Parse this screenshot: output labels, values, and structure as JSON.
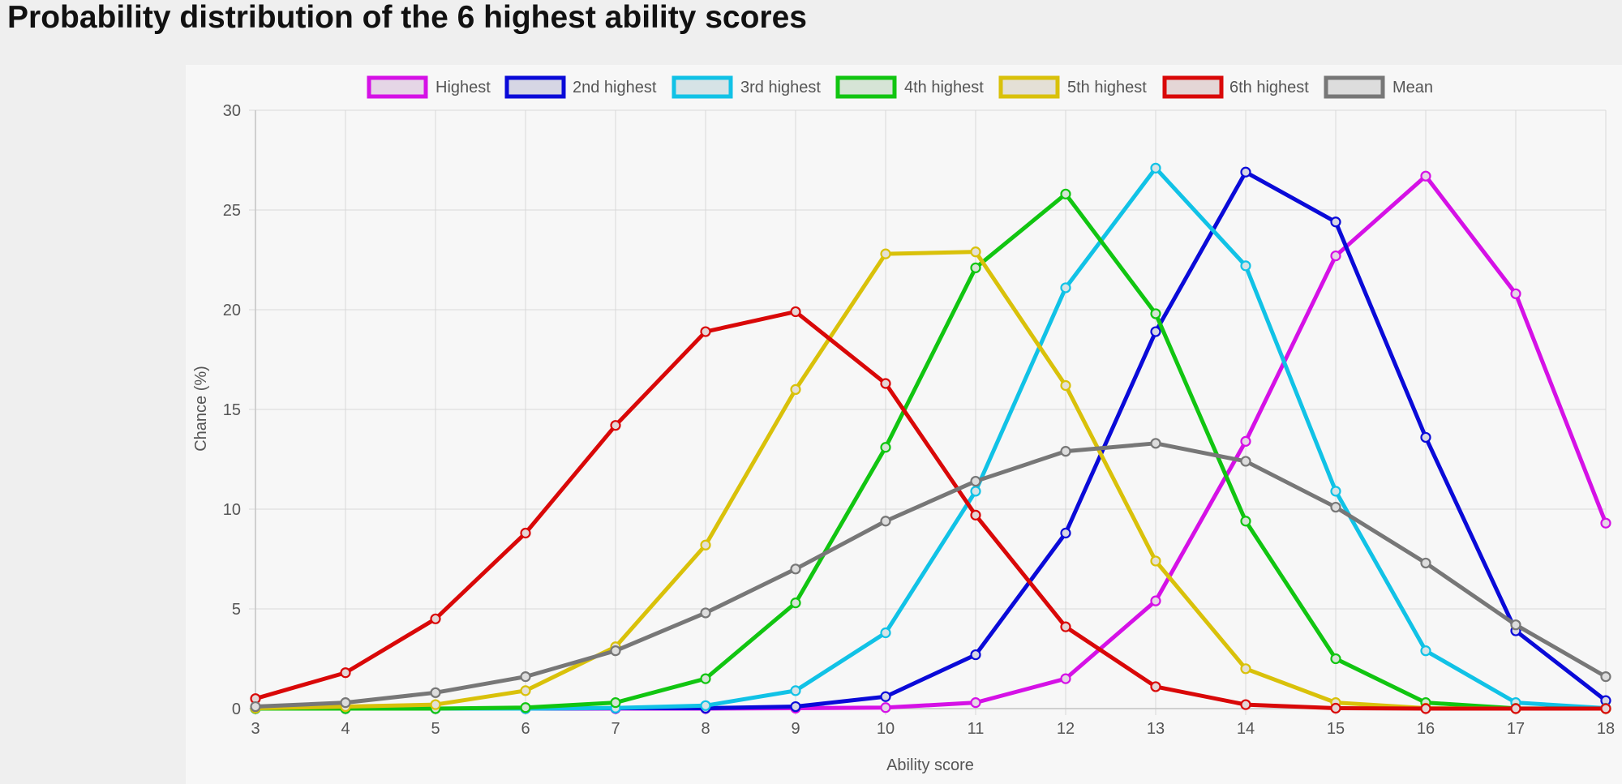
{
  "page": {
    "title": "Probability distribution of the 6 highest ability scores"
  },
  "chart_data": {
    "type": "line",
    "title": "",
    "xlabel": "Ability score",
    "ylabel": "Chance (%)",
    "x": [
      3,
      4,
      5,
      6,
      7,
      8,
      9,
      10,
      11,
      12,
      13,
      14,
      15,
      16,
      17,
      18
    ],
    "xlim": [
      3,
      18
    ],
    "ylim": [
      0,
      30
    ],
    "yticks": [
      0,
      5,
      10,
      15,
      20,
      25,
      30
    ],
    "grid": true,
    "legend_position": "top-center",
    "series": [
      {
        "name": "Highest",
        "color": "#d511e6",
        "fill": "#e5d6e6",
        "values": [
          0,
          0,
          0,
          0,
          0,
          0,
          0.02,
          0.05,
          0.3,
          1.5,
          5.4,
          13.4,
          22.7,
          26.7,
          20.8,
          9.3
        ]
      },
      {
        "name": "2nd highest",
        "color": "#0a0ad8",
        "fill": "#d6d6e4",
        "values": [
          0,
          0,
          0,
          0,
          0.02,
          0.02,
          0.1,
          0.6,
          2.7,
          8.8,
          18.9,
          26.9,
          24.4,
          13.6,
          3.9,
          0.4
        ]
      },
      {
        "name": "3rd highest",
        "color": "#11c2e6",
        "fill": "#d6e3e6",
        "values": [
          0,
          0,
          0,
          0,
          0.03,
          0.15,
          0.9,
          3.8,
          10.9,
          21.1,
          27.1,
          22.2,
          10.9,
          2.9,
          0.3,
          0.02
        ]
      },
      {
        "name": "4th highest",
        "color": "#11c511",
        "fill": "#d6e4d6",
        "values": [
          0,
          0,
          0,
          0.05,
          0.3,
          1.5,
          5.3,
          13.1,
          22.1,
          25.8,
          19.8,
          9.4,
          2.5,
          0.3,
          0.01,
          0
        ]
      },
      {
        "name": "5th highest",
        "color": "#d9c10a",
        "fill": "#e4e0d6",
        "values": [
          0.02,
          0.1,
          0.2,
          0.9,
          3.1,
          8.2,
          16,
          22.8,
          22.9,
          16.2,
          7.4,
          2,
          0.3,
          0.02,
          0,
          0
        ]
      },
      {
        "name": "6th highest",
        "color": "#d90808",
        "fill": "#e4d6d6",
        "values": [
          0.5,
          1.8,
          4.5,
          8.8,
          14.2,
          18.9,
          19.9,
          16.3,
          9.7,
          4.1,
          1.1,
          0.2,
          0.02,
          0,
          0,
          0
        ]
      },
      {
        "name": "Mean",
        "color": "#777777",
        "fill": "#dddddd",
        "values": [
          0.1,
          0.3,
          0.8,
          1.6,
          2.9,
          4.8,
          7,
          9.4,
          11.4,
          12.9,
          13.3,
          12.4,
          10.1,
          7.3,
          4.2,
          1.6
        ]
      }
    ]
  }
}
